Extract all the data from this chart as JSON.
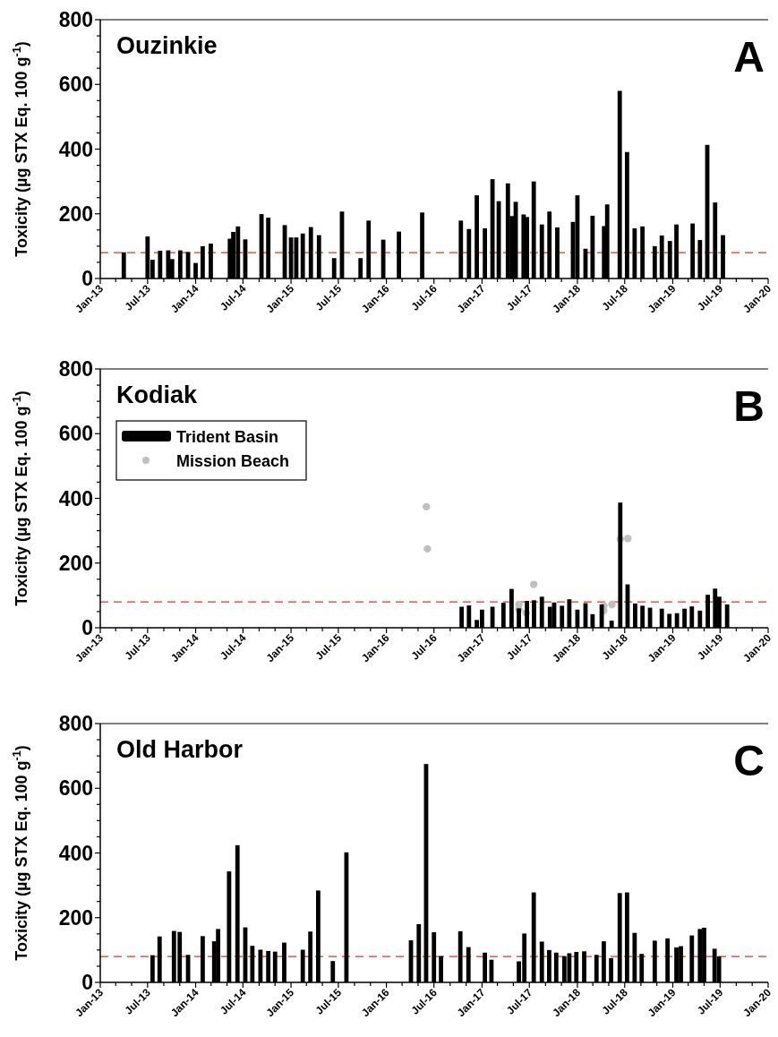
{
  "chart_data": [
    {
      "type": "bar",
      "title": "Ouzinkie",
      "ylabel": "Toxicity (µg STX Eq. 100 g$^{-1}$)",
      "annotations": [
        "A"
      ],
      "series": [
        {
          "color": "#000000",
          "x": [
            "2013-04-01",
            "2013-07-01",
            "2013-07-20",
            "2013-08-18",
            "2013-09-18",
            "2013-10-03",
            "2013-11-03",
            "2013-12-03",
            "2014-01-01",
            "2014-01-28",
            "2014-02-28",
            "2014-05-12",
            "2014-05-25",
            "2014-06-12",
            "2014-07-10",
            "2014-09-10",
            "2014-10-06",
            "2014-12-08",
            "2015-01-01",
            "2015-01-21",
            "2015-02-15",
            "2015-03-18",
            "2015-04-18",
            "2015-06-15",
            "2015-07-15",
            "2015-09-24",
            "2015-10-25",
            "2015-12-20",
            "2016-02-18",
            "2016-05-17",
            "2016-10-12",
            "2016-11-12",
            "2016-12-12",
            "2017-01-12",
            "2017-02-10",
            "2017-03-06",
            "2017-04-10",
            "2017-04-25",
            "2017-05-10",
            "2017-06-09",
            "2017-06-22",
            "2017-07-18",
            "2017-08-18",
            "2017-09-16",
            "2017-10-16",
            "2017-12-15",
            "2018-01-01",
            "2018-02-01",
            "2018-02-28",
            "2018-04-13",
            "2018-04-25",
            "2018-06-12",
            "2018-07-10",
            "2018-08-08",
            "2018-09-07",
            "2018-10-24",
            "2018-11-20",
            "2018-12-21",
            "2019-01-15",
            "2019-03-18",
            "2019-04-15",
            "2019-05-13",
            "2019-06-12",
            "2019-07-12"
          ],
          "values": [
            81,
            130,
            58,
            86,
            87,
            60,
            87,
            82,
            48,
            100,
            108,
            123,
            144,
            161,
            121,
            199,
            188,
            165,
            127,
            127,
            139,
            159,
            134,
            63,
            207,
            63,
            179,
            120,
            145,
            204,
            179,
            153,
            257,
            155,
            307,
            239,
            294,
            193,
            237,
            198,
            190,
            300,
            167,
            207,
            158,
            175,
            257,
            92,
            194,
            162,
            229,
            580,
            391,
            155,
            161,
            100,
            133,
            116,
            167,
            170,
            119,
            413,
            235,
            134
          ]
        }
      ],
      "xlim": [
        "2013-01-01",
        "2020-01-01"
      ],
      "xticks": [
        {
          "value": "2013-01-01",
          "label": "Jan-13"
        },
        {
          "value": "2013-03-01",
          "label": null
        },
        {
          "value": "2013-05-01",
          "label": null
        },
        {
          "value": "2013-07-01",
          "label": "Jul-13"
        },
        {
          "value": "2013-09-01",
          "label": null
        },
        {
          "value": "2013-11-01",
          "label": null
        },
        {
          "value": "2014-01-01",
          "label": "Jan-14"
        },
        {
          "value": "2014-03-01",
          "label": null
        },
        {
          "value": "2014-05-01",
          "label": null
        },
        {
          "value": "2014-07-01",
          "label": "Jul-14"
        },
        {
          "value": "2014-09-01",
          "label": null
        },
        {
          "value": "2014-11-01",
          "label": null
        },
        {
          "value": "2015-01-01",
          "label": "Jan-15"
        },
        {
          "value": "2015-03-01",
          "label": null
        },
        {
          "value": "2015-05-01",
          "label": null
        },
        {
          "value": "2015-07-01",
          "label": "Jul-15"
        },
        {
          "value": "2015-09-01",
          "label": null
        },
        {
          "value": "2015-11-01",
          "label": null
        },
        {
          "value": "2016-01-01",
          "label": "Jan-16"
        },
        {
          "value": "2016-03-01",
          "label": null
        },
        {
          "value": "2016-05-01",
          "label": null
        },
        {
          "value": "2016-07-01",
          "label": "Jul-16"
        },
        {
          "value": "2016-09-01",
          "label": null
        },
        {
          "value": "2016-11-01",
          "label": null
        },
        {
          "value": "2017-01-01",
          "label": "Jan-17"
        },
        {
          "value": "2017-03-01",
          "label": null
        },
        {
          "value": "2017-05-01",
          "label": null
        },
        {
          "value": "2017-07-01",
          "label": "Jul-17"
        },
        {
          "value": "2017-09-01",
          "label": null
        },
        {
          "value": "2017-11-01",
          "label": null
        },
        {
          "value": "2018-01-01",
          "label": "Jan-18"
        },
        {
          "value": "2018-03-01",
          "label": null
        },
        {
          "value": "2018-05-01",
          "label": null
        },
        {
          "value": "2018-07-01",
          "label": "Jul-18"
        },
        {
          "value": "2018-09-01",
          "label": null
        },
        {
          "value": "2018-11-01",
          "label": null
        },
        {
          "value": "2019-01-01",
          "label": "Jan-19"
        },
        {
          "value": "2019-03-01",
          "label": null
        },
        {
          "value": "2019-05-01",
          "label": null
        },
        {
          "value": "2019-07-01",
          "label": "Jul-19"
        },
        {
          "value": "2019-09-01",
          "label": null
        },
        {
          "value": "2019-11-01",
          "label": null
        },
        {
          "value": "2020-01-01",
          "label": "Jan-20"
        }
      ],
      "ylim": [
        0,
        800
      ],
      "yticks": [
        0,
        {
          "value": 50,
          "label": null
        },
        {
          "value": 100,
          "label": null
        },
        {
          "value": 150,
          "label": null
        },
        200,
        {
          "value": 250,
          "label": null
        },
        {
          "value": 300,
          "label": null
        },
        {
          "value": 350,
          "label": null
        },
        400,
        {
          "value": 450,
          "label": null
        },
        {
          "value": 500,
          "label": null
        },
        {
          "value": 550,
          "label": null
        },
        600,
        {
          "value": 650,
          "label": null
        },
        {
          "value": 700,
          "label": null
        },
        {
          "value": 750,
          "label": null
        },
        800
      ],
      "ref_lines": [
        {
          "axis": "y",
          "value": 80,
          "color": "#e8322b",
          "line_style": "dashed"
        }
      ]
    },
    {
      "type": "bar",
      "title": "Kodiak",
      "ylabel": "Toxicity (µg STX Eq. 100 g$^{-1}$)",
      "annotations": [
        "B"
      ],
      "legend": "top left",
      "series": [
        {
          "name": "Trident Basin",
          "color": "#000000",
          "x": [
            "2016-10-15",
            "2016-11-12",
            "2016-12-12",
            "2017-01-01",
            "2017-02-10",
            "2017-03-24",
            "2017-04-24",
            "2017-05-22",
            "2017-06-22",
            "2017-07-19",
            "2017-08-18",
            "2017-09-18",
            "2017-10-04",
            "2017-11-03",
            "2017-12-01",
            "2018-01-01",
            "2018-02-01",
            "2018-02-28",
            "2018-04-04",
            "2018-05-12",
            "2018-06-14",
            "2018-07-12",
            "2018-08-10",
            "2018-09-07",
            "2018-10-06",
            "2018-11-20",
            "2018-12-19",
            "2019-01-17",
            "2019-02-15",
            "2019-03-15",
            "2019-04-15",
            "2019-05-15",
            "2019-06-12",
            "2019-06-28",
            "2019-07-28"
          ],
          "values": [
            65,
            69,
            24,
            56,
            65,
            77,
            120,
            60,
            83,
            85,
            96,
            65,
            78,
            68,
            88,
            56,
            76,
            42,
            72,
            22,
            387,
            134,
            75,
            68,
            62,
            59,
            43,
            45,
            59,
            66,
            53,
            102,
            121,
            96,
            72
          ]
        },
        {
          "name": "Mission Beach",
          "type": "scatter",
          "marker": "circle",
          "color": "#c0c0c0",
          "x": [
            "2016-06-02",
            "2016-06-06",
            "2017-05-22",
            "2017-05-22",
            "2017-06-19",
            "2017-07-18",
            "2018-04-12",
            "2018-04-12",
            "2018-05-13",
            "2018-06-14",
            "2018-07-13"
          ],
          "values": [
            374,
            244,
            72,
            57,
            46,
            134,
            68,
            53,
            72,
            274,
            276
          ]
        }
      ],
      "xlim": [
        "2013-01-01",
        "2020-01-01"
      ],
      "xticks": [
        {
          "value": "2013-01-01",
          "label": "Jan-13"
        },
        {
          "value": "2013-03-01",
          "label": null
        },
        {
          "value": "2013-05-01",
          "label": null
        },
        {
          "value": "2013-07-01",
          "label": "Jul-13"
        },
        {
          "value": "2013-09-01",
          "label": null
        },
        {
          "value": "2013-11-01",
          "label": null
        },
        {
          "value": "2014-01-01",
          "label": "Jan-14"
        },
        {
          "value": "2014-03-01",
          "label": null
        },
        {
          "value": "2014-05-01",
          "label": null
        },
        {
          "value": "2014-07-01",
          "label": "Jul-14"
        },
        {
          "value": "2014-09-01",
          "label": null
        },
        {
          "value": "2014-11-01",
          "label": null
        },
        {
          "value": "2015-01-01",
          "label": "Jan-15"
        },
        {
          "value": "2015-03-01",
          "label": null
        },
        {
          "value": "2015-05-01",
          "label": null
        },
        {
          "value": "2015-07-01",
          "label": "Jul-15"
        },
        {
          "value": "2015-09-01",
          "label": null
        },
        {
          "value": "2015-11-01",
          "label": null
        },
        {
          "value": "2016-01-01",
          "label": "Jan-16"
        },
        {
          "value": "2016-03-01",
          "label": null
        },
        {
          "value": "2016-05-01",
          "label": null
        },
        {
          "value": "2016-07-01",
          "label": "Jul-16"
        },
        {
          "value": "2016-09-01",
          "label": null
        },
        {
          "value": "2016-11-01",
          "label": null
        },
        {
          "value": "2017-01-01",
          "label": "Jan-17"
        },
        {
          "value": "2017-03-01",
          "label": null
        },
        {
          "value": "2017-05-01",
          "label": null
        },
        {
          "value": "2017-07-01",
          "label": "Jul-17"
        },
        {
          "value": "2017-09-01",
          "label": null
        },
        {
          "value": "2017-11-01",
          "label": null
        },
        {
          "value": "2018-01-01",
          "label": "Jan-18"
        },
        {
          "value": "2018-03-01",
          "label": null
        },
        {
          "value": "2018-05-01",
          "label": null
        },
        {
          "value": "2018-07-01",
          "label": "Jul-18"
        },
        {
          "value": "2018-09-01",
          "label": null
        },
        {
          "value": "2018-11-01",
          "label": null
        },
        {
          "value": "2019-01-01",
          "label": "Jan-19"
        },
        {
          "value": "2019-03-01",
          "label": null
        },
        {
          "value": "2019-05-01",
          "label": null
        },
        {
          "value": "2019-07-01",
          "label": "Jul-19"
        },
        {
          "value": "2019-09-01",
          "label": null
        },
        {
          "value": "2019-11-01",
          "label": null
        },
        {
          "value": "2020-01-01",
          "label": "Jan-20"
        }
      ],
      "ylim": [
        0,
        800
      ],
      "yticks": [
        0,
        {
          "value": 50,
          "label": null
        },
        {
          "value": 100,
          "label": null
        },
        {
          "value": 150,
          "label": null
        },
        200,
        {
          "value": 250,
          "label": null
        },
        {
          "value": 300,
          "label": null
        },
        {
          "value": 350,
          "label": null
        },
        400,
        {
          "value": 450,
          "label": null
        },
        {
          "value": 500,
          "label": null
        },
        {
          "value": 550,
          "label": null
        },
        600,
        {
          "value": 650,
          "label": null
        },
        {
          "value": 700,
          "label": null
        },
        {
          "value": 750,
          "label": null
        },
        800
      ],
      "ref_lines": [
        {
          "axis": "y",
          "value": 80,
          "color": "#e8322b",
          "line_style": "dashed"
        }
      ]
    },
    {
      "type": "bar",
      "title": "Old Harbor",
      "ylabel": "Toxicity (µg STX Eq. 100 g$^{-1}$)",
      "annotations": [
        "C"
      ],
      "series": [
        {
          "color": "#000000",
          "x": [
            "2013-07-20",
            "2013-08-16",
            "2013-10-10",
            "2013-11-01",
            "2013-12-03",
            "2014-01-28",
            "2014-03-13",
            "2014-03-28",
            "2014-05-09",
            "2014-06-10",
            "2014-07-10",
            "2014-08-06",
            "2014-09-06",
            "2014-10-06",
            "2014-11-01",
            "2014-12-06",
            "2015-02-15",
            "2015-03-16",
            "2015-04-15",
            "2015-06-10",
            "2015-08-01",
            "2016-04-04",
            "2016-05-04",
            "2016-06-01",
            "2016-07-01",
            "2016-07-28",
            "2016-10-10",
            "2016-11-10",
            "2017-01-12",
            "2017-02-06",
            "2017-05-22",
            "2017-06-12",
            "2017-07-18",
            "2017-08-18",
            "2017-09-15",
            "2017-10-12",
            "2017-11-12",
            "2017-12-01",
            "2017-12-28",
            "2018-01-27",
            "2018-03-15",
            "2018-04-12",
            "2018-05-10",
            "2018-06-12",
            "2018-07-10",
            "2018-08-08",
            "2018-09-04",
            "2018-10-24",
            "2018-12-12",
            "2019-01-15",
            "2019-02-01",
            "2019-03-15",
            "2019-04-15",
            "2019-05-01",
            "2019-06-10",
            "2019-06-27"
          ],
          "values": [
            84,
            142,
            159,
            156,
            85,
            143,
            127,
            165,
            343,
            424,
            170,
            113,
            101,
            97,
            95,
            123,
            101,
            157,
            284,
            66,
            402,
            130,
            180,
            675,
            155,
            81,
            158,
            109,
            92,
            70,
            65,
            151,
            278,
            126,
            100,
            92,
            81,
            90,
            94,
            96,
            85,
            127,
            75,
            276,
            278,
            153,
            88,
            129,
            136,
            108,
            112,
            145,
            165,
            169,
            104,
            80
          ]
        }
      ],
      "xlim": [
        "2013-01-01",
        "2020-01-01"
      ],
      "xticks": [
        {
          "value": "2013-01-01",
          "label": "Jan-13"
        },
        {
          "value": "2013-03-01",
          "label": null
        },
        {
          "value": "2013-05-01",
          "label": null
        },
        {
          "value": "2013-07-01",
          "label": "Jul-13"
        },
        {
          "value": "2013-09-01",
          "label": null
        },
        {
          "value": "2013-11-01",
          "label": null
        },
        {
          "value": "2014-01-01",
          "label": "Jan-14"
        },
        {
          "value": "2014-03-01",
          "label": null
        },
        {
          "value": "2014-05-01",
          "label": null
        },
        {
          "value": "2014-07-01",
          "label": "Jul-14"
        },
        {
          "value": "2014-09-01",
          "label": null
        },
        {
          "value": "2014-11-01",
          "label": null
        },
        {
          "value": "2015-01-01",
          "label": "Jan-15"
        },
        {
          "value": "2015-03-01",
          "label": null
        },
        {
          "value": "2015-05-01",
          "label": null
        },
        {
          "value": "2015-07-01",
          "label": "Jul-15"
        },
        {
          "value": "2015-09-01",
          "label": null
        },
        {
          "value": "2015-11-01",
          "label": null
        },
        {
          "value": "2016-01-01",
          "label": "Jan-16"
        },
        {
          "value": "2016-03-01",
          "label": null
        },
        {
          "value": "2016-05-01",
          "label": null
        },
        {
          "value": "2016-07-01",
          "label": "Jul-16"
        },
        {
          "value": "2016-09-01",
          "label": null
        },
        {
          "value": "2016-11-01",
          "label": null
        },
        {
          "value": "2017-01-01",
          "label": "Jan-17"
        },
        {
          "value": "2017-03-01",
          "label": null
        },
        {
          "value": "2017-05-01",
          "label": null
        },
        {
          "value": "2017-07-01",
          "label": "Jul-17"
        },
        {
          "value": "2017-09-01",
          "label": null
        },
        {
          "value": "2017-11-01",
          "label": null
        },
        {
          "value": "2018-01-01",
          "label": "Jan-18"
        },
        {
          "value": "2018-03-01",
          "label": null
        },
        {
          "value": "2018-05-01",
          "label": null
        },
        {
          "value": "2018-07-01",
          "label": "Jul-18"
        },
        {
          "value": "2018-09-01",
          "label": null
        },
        {
          "value": "2018-11-01",
          "label": null
        },
        {
          "value": "2019-01-01",
          "label": "Jan-19"
        },
        {
          "value": "2019-03-01",
          "label": null
        },
        {
          "value": "2019-05-01",
          "label": null
        },
        {
          "value": "2019-07-01",
          "label": "Jul-19"
        },
        {
          "value": "2019-09-01",
          "label": null
        },
        {
          "value": "2019-11-01",
          "label": null
        },
        {
          "value": "2020-01-01",
          "label": "Jan-20"
        }
      ],
      "ylim": [
        0,
        800
      ],
      "yticks": [
        0,
        {
          "value": 50,
          "label": null
        },
        {
          "value": 100,
          "label": null
        },
        {
          "value": 150,
          "label": null
        },
        200,
        {
          "value": 250,
          "label": null
        },
        {
          "value": 300,
          "label": null
        },
        {
          "value": 350,
          "label": null
        },
        400,
        {
          "value": 450,
          "label": null
        },
        {
          "value": 500,
          "label": null
        },
        {
          "value": 550,
          "label": null
        },
        600,
        {
          "value": 650,
          "label": null
        },
        {
          "value": 700,
          "label": null
        },
        {
          "value": 750,
          "label": null
        },
        800
      ],
      "ref_lines": [
        {
          "axis": "y",
          "value": 80,
          "color": "#e8322b",
          "line_style": "dashed"
        }
      ]
    }
  ]
}
